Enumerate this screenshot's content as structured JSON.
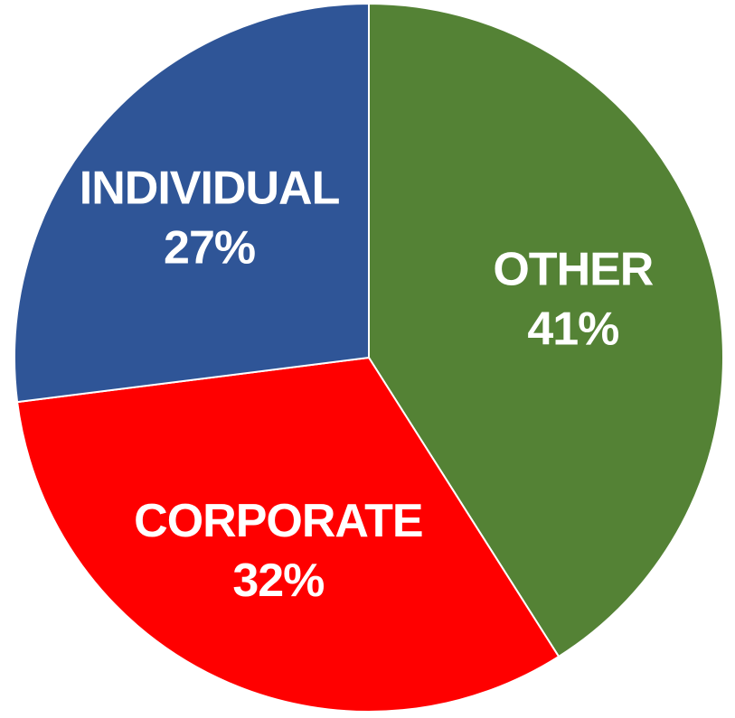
{
  "chart_data": {
    "type": "pie",
    "title": "",
    "legend": "none",
    "slices": [
      {
        "label": "OTHER",
        "value": 41,
        "value_label": "41%",
        "color": "#548235"
      },
      {
        "label": "CORPORATE",
        "value": 32,
        "value_label": "32%",
        "color": "#FF0000"
      },
      {
        "label": "INDIVIDUAL",
        "value": 27,
        "value_label": "27%",
        "color": "#2F5597"
      }
    ]
  }
}
